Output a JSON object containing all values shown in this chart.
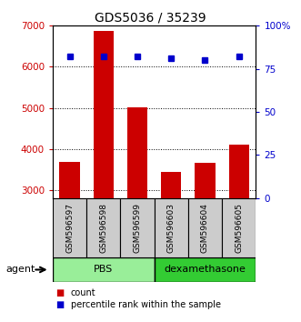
{
  "title": "GDS5036 / 35239",
  "samples": [
    "GSM596597",
    "GSM596598",
    "GSM596599",
    "GSM596603",
    "GSM596604",
    "GSM596605"
  ],
  "counts": [
    3680,
    6870,
    5020,
    3440,
    3650,
    4100
  ],
  "percentile_ranks": [
    82,
    82,
    82,
    81,
    80,
    82
  ],
  "ylim_left": [
    2800,
    7000
  ],
  "ylim_right": [
    0,
    100
  ],
  "yticks_left": [
    3000,
    4000,
    5000,
    6000,
    7000
  ],
  "yticks_right": [
    0,
    25,
    50,
    75,
    100
  ],
  "ytick_labels_left": [
    "3000",
    "4000",
    "5000",
    "6000",
    "7000"
  ],
  "ytick_labels_right": [
    "0",
    "25",
    "50",
    "75",
    "100%"
  ],
  "bar_color": "#cc0000",
  "dot_color": "#0000cc",
  "groups": [
    {
      "label": "PBS",
      "indices": [
        0,
        1,
        2
      ],
      "color": "#99ee99"
    },
    {
      "label": "dexamethasone",
      "indices": [
        3,
        4,
        5
      ],
      "color": "#33cc33"
    }
  ],
  "agent_label": "agent",
  "legend": [
    {
      "label": "count",
      "color": "#cc0000"
    },
    {
      "label": "percentile rank within the sample",
      "color": "#0000cc"
    }
  ],
  "tick_color_left": "#cc0000",
  "tick_color_right": "#0000cc",
  "box_bg": "#cccccc",
  "plot_bg": "#ffffff"
}
